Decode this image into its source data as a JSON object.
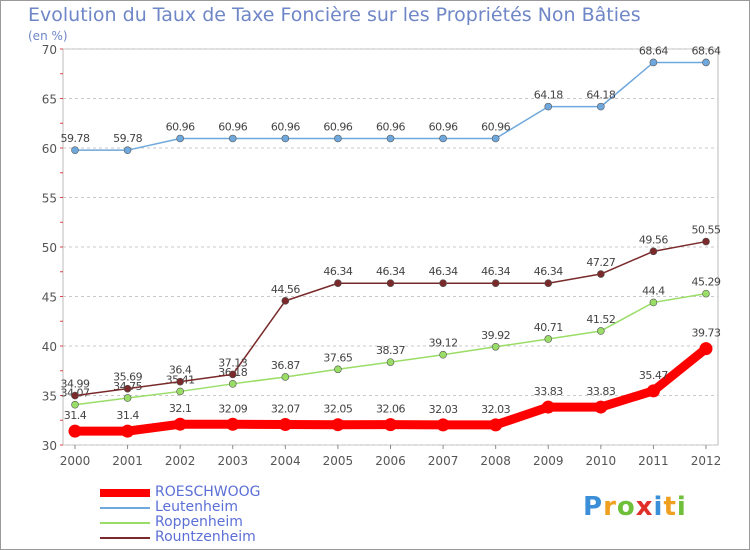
{
  "chart_title": "Evolution du Taux de Taxe Foncière sur les Propriétés Non Bâties",
  "chart_subtitle": "(en %)",
  "logo": {
    "text": "Proxiti",
    "colors": [
      "#3a8fd8",
      "#f0a020",
      "#6fbf3a",
      "#e0302a",
      "#3a8fd8",
      "#f0a020",
      "#6fbf3a"
    ]
  },
  "chart_data": {
    "type": "line",
    "title": "Evolution du Taux de Taxe Foncière sur les Propriétés Non Bâties",
    "subtitle": "(en %)",
    "x": [
      "2000",
      "2001",
      "2002",
      "2003",
      "2004",
      "2005",
      "2006",
      "2007",
      "2008",
      "2009",
      "2010",
      "2011",
      "2012"
    ],
    "ylim": [
      30,
      70
    ],
    "yticks": [
      30,
      35,
      40,
      45,
      50,
      55,
      60,
      65,
      70
    ],
    "grid": "horizontal dashed",
    "legend_position": "bottom-left",
    "series": [
      {
        "name": "ROESCHWOOG",
        "color": "#ff0000",
        "values": [
          31.4,
          31.4,
          32.1,
          32.09,
          32.07,
          32.05,
          32.06,
          32.03,
          32.03,
          33.83,
          33.83,
          35.47,
          39.73
        ],
        "labels": [
          "31.4",
          "31.4",
          "32.1",
          "32.09",
          "32.07",
          "32.05",
          "32.06",
          "32.03",
          "32.03",
          "33.83",
          "33.83",
          "35.47",
          "39.73"
        ]
      },
      {
        "name": "Leutenheim",
        "color": "#6fa8dc",
        "values": [
          59.78,
          59.78,
          60.96,
          60.96,
          60.96,
          60.96,
          60.96,
          60.96,
          60.96,
          64.18,
          64.18,
          68.64,
          68.64
        ],
        "labels": [
          "59.78",
          "59.78",
          "60.96",
          "60.96",
          "60.96",
          "60.96",
          "60.96",
          "60.96",
          "60.96",
          "64.18",
          "64.18",
          "68.64",
          "68.64"
        ]
      },
      {
        "name": "Roppenheim",
        "color": "#99dd66",
        "values": [
          34.07,
          34.75,
          35.41,
          36.18,
          36.87,
          37.65,
          38.37,
          39.12,
          39.92,
          40.71,
          41.52,
          44.4,
          45.29
        ],
        "labels": [
          "34.07",
          "34.75",
          "35.41",
          "36.18",
          "36.87",
          "37.65",
          "38.37",
          "39.12",
          "39.92",
          "40.71",
          "41.52",
          "44.4",
          "45.29"
        ]
      },
      {
        "name": "Rountzenheim",
        "color": "#7a2a2a",
        "values": [
          34.99,
          35.69,
          36.4,
          37.13,
          44.56,
          46.34,
          46.34,
          46.34,
          46.34,
          46.34,
          47.27,
          49.56,
          50.55
        ],
        "labels": [
          "34.99",
          "35.69",
          "36.4",
          "37.13",
          "44.56",
          "46.34",
          "46.34",
          "46.34",
          "46.34",
          "46.34",
          "47.27",
          "49.56",
          "50.55"
        ]
      }
    ]
  }
}
